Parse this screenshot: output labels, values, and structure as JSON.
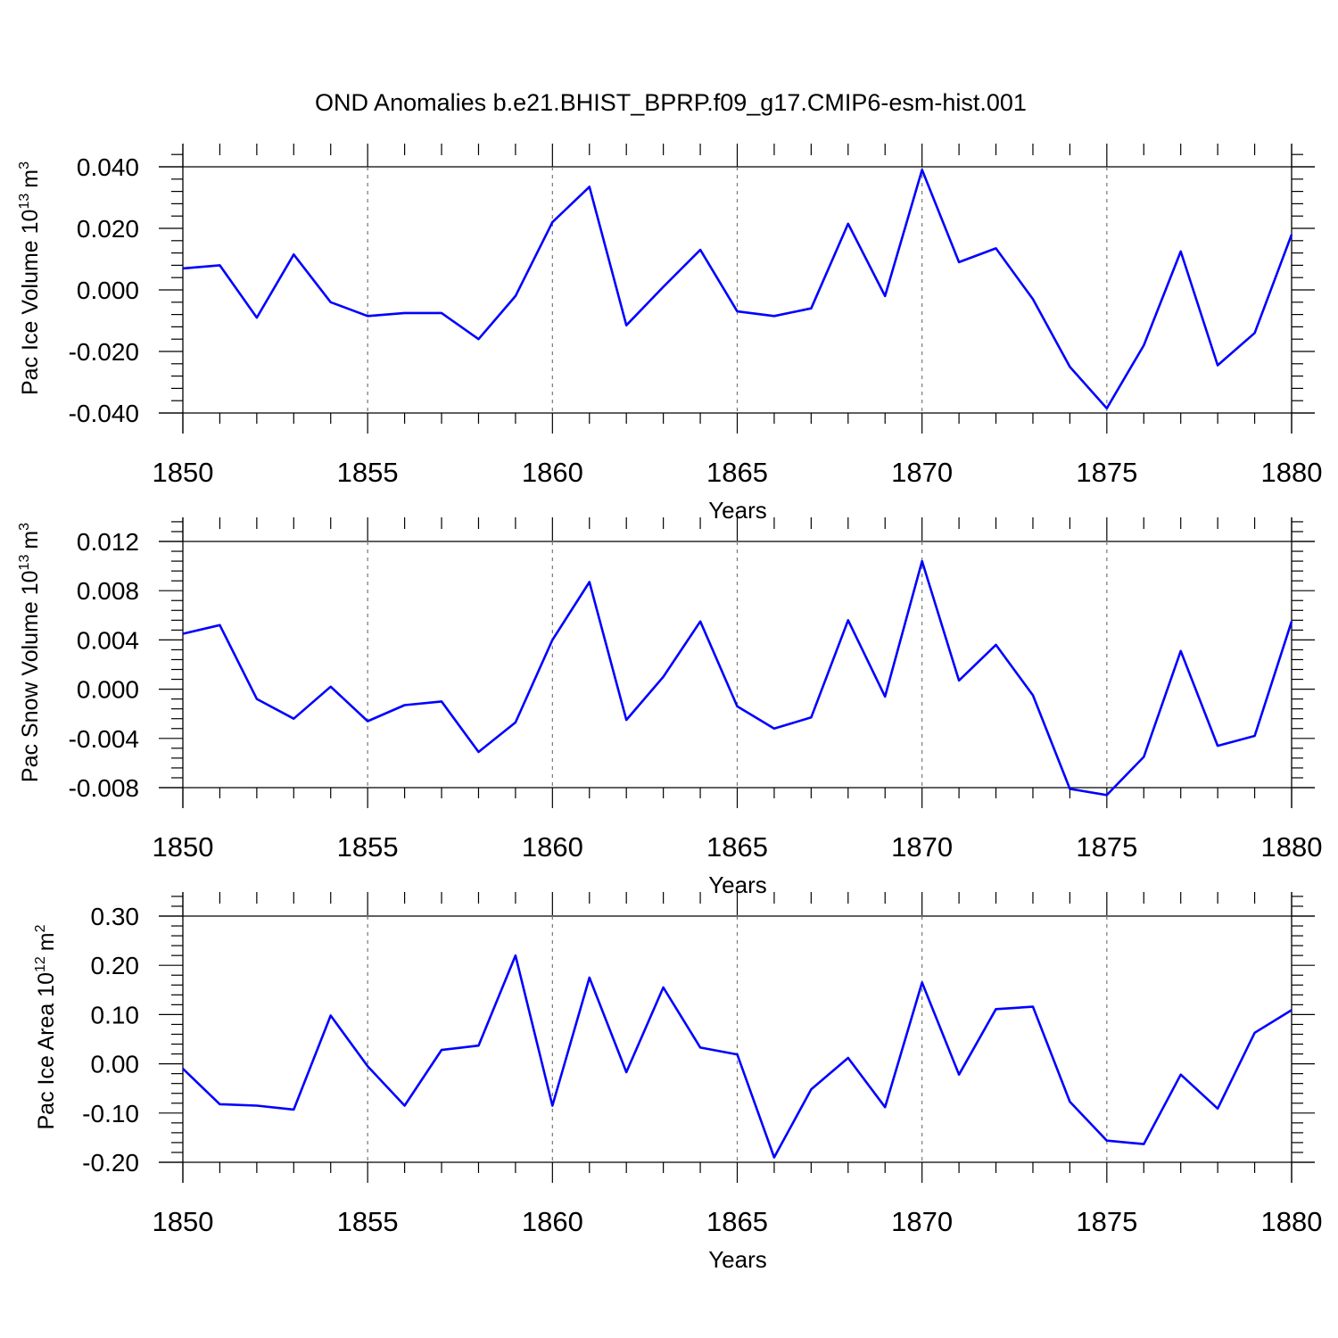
{
  "chart_data": [
    {
      "type": "line",
      "title": "OND Anomalies b.e21.BHIST_BPRP.f09_g17.CMIP6-esm-hist.001",
      "xlabel": "Years",
      "ylabel_main": "Pac Ice Volume 10",
      "ylabel_exp": "13",
      "ylabel_unit": "m",
      "ylabel_unit_exp": "3",
      "xlim": [
        1850,
        1880
      ],
      "ylim": [
        -0.04,
        0.04
      ],
      "xticks": [
        1850,
        1855,
        1860,
        1865,
        1870,
        1875,
        1880
      ],
      "xtick_labels": [
        "1850",
        "1855",
        "1860",
        "1865",
        "1870",
        "1875",
        "1880"
      ],
      "yticks": [
        -0.04,
        -0.02,
        0.0,
        0.02,
        0.04
      ],
      "ytick_labels": [
        "-0.040",
        "-0.020",
        "0.000",
        "0.020",
        "0.040"
      ],
      "x": [
        1850,
        1851,
        1852,
        1853,
        1854,
        1855,
        1856,
        1857,
        1858,
        1859,
        1860,
        1861,
        1862,
        1863,
        1864,
        1865,
        1866,
        1867,
        1868,
        1869,
        1870,
        1871,
        1872,
        1873,
        1874,
        1875,
        1876,
        1877,
        1878,
        1879,
        1880
      ],
      "series": [
        {
          "name": "Pac Ice Volume",
          "color": "#0000ff",
          "values": [
            0.007,
            0.008,
            -0.009,
            0.0115,
            -0.004,
            -0.0085,
            -0.0075,
            -0.0075,
            -0.016,
            -0.002,
            0.022,
            0.0335,
            -0.0115,
            0.001,
            0.013,
            -0.007,
            -0.0085,
            -0.006,
            0.0215,
            -0.002,
            0.039,
            0.009,
            0.0135,
            -0.003,
            -0.025,
            -0.0385,
            -0.018,
            0.0125,
            -0.0245,
            -0.014,
            0.018
          ]
        }
      ]
    },
    {
      "type": "line",
      "xlabel": "Years",
      "ylabel_main": "Pac Snow Volume 10",
      "ylabel_exp": "13",
      "ylabel_unit": "m",
      "ylabel_unit_exp": "3",
      "xlim": [
        1850,
        1880
      ],
      "ylim": [
        -0.009,
        0.0122
      ],
      "xticks": [
        1850,
        1855,
        1860,
        1865,
        1870,
        1875,
        1880
      ],
      "xtick_labels": [
        "1850",
        "1855",
        "1860",
        "1865",
        "1870",
        "1875",
        "1880"
      ],
      "yticks": [
        -0.008,
        -0.004,
        0.0,
        0.004,
        0.008,
        0.012
      ],
      "ytick_labels": [
        "-0.008",
        "-0.004",
        "0.000",
        "0.004",
        "0.008",
        "0.012"
      ],
      "x": [
        1850,
        1851,
        1852,
        1853,
        1854,
        1855,
        1856,
        1857,
        1858,
        1859,
        1860,
        1861,
        1862,
        1863,
        1864,
        1865,
        1866,
        1867,
        1868,
        1869,
        1870,
        1871,
        1872,
        1873,
        1874,
        1875,
        1876,
        1877,
        1878,
        1879,
        1880
      ],
      "series": [
        {
          "name": "Pac Snow Volume",
          "color": "#0000ff",
          "values": [
            0.0045,
            0.0052,
            -0.0008,
            -0.0024,
            0.0002,
            -0.0026,
            -0.0013,
            -0.001,
            -0.0051,
            -0.0027,
            0.004,
            0.0087,
            -0.0025,
            0.001,
            0.0055,
            -0.0014,
            -0.0032,
            -0.0023,
            0.0056,
            -0.0006,
            0.0104,
            0.0007,
            0.0036,
            -0.0005,
            -0.0081,
            -0.0086,
            -0.0055,
            0.0031,
            -0.0046,
            -0.0038,
            0.0055
          ]
        }
      ]
    },
    {
      "type": "line",
      "xlabel": "Years",
      "ylabel_main": "Pac Ice Area 10",
      "ylabel_exp": "12",
      "ylabel_unit": "m",
      "ylabel_unit_exp": "2",
      "xlim": [
        1850,
        1880
      ],
      "ylim": [
        -0.2,
        0.3
      ],
      "xticks": [
        1850,
        1855,
        1860,
        1865,
        1870,
        1875,
        1880
      ],
      "xtick_labels": [
        "1850",
        "1855",
        "1860",
        "1865",
        "1870",
        "1875",
        "1880"
      ],
      "yticks": [
        -0.2,
        -0.1,
        0.0,
        0.1,
        0.2,
        0.3
      ],
      "ytick_labels": [
        "-0.20",
        "-0.10",
        "0.00",
        "0.10",
        "0.20",
        "0.30"
      ],
      "x": [
        1850,
        1851,
        1852,
        1853,
        1854,
        1855,
        1856,
        1857,
        1858,
        1859,
        1860,
        1861,
        1862,
        1863,
        1864,
        1865,
        1866,
        1867,
        1868,
        1869,
        1870,
        1871,
        1872,
        1873,
        1874,
        1875,
        1876,
        1877,
        1878,
        1879,
        1880
      ],
      "series": [
        {
          "name": "Pac Ice Area",
          "color": "#0000ff",
          "values": [
            -0.01,
            -0.082,
            -0.085,
            -0.093,
            0.098,
            -0.005,
            -0.085,
            0.028,
            0.037,
            0.22,
            -0.085,
            0.175,
            -0.017,
            0.155,
            0.033,
            0.019,
            -0.19,
            -0.052,
            0.012,
            -0.088,
            0.165,
            -0.022,
            0.111,
            0.116,
            -0.077,
            -0.156,
            -0.163,
            -0.022,
            -0.091,
            0.063,
            0.109
          ]
        }
      ]
    }
  ]
}
